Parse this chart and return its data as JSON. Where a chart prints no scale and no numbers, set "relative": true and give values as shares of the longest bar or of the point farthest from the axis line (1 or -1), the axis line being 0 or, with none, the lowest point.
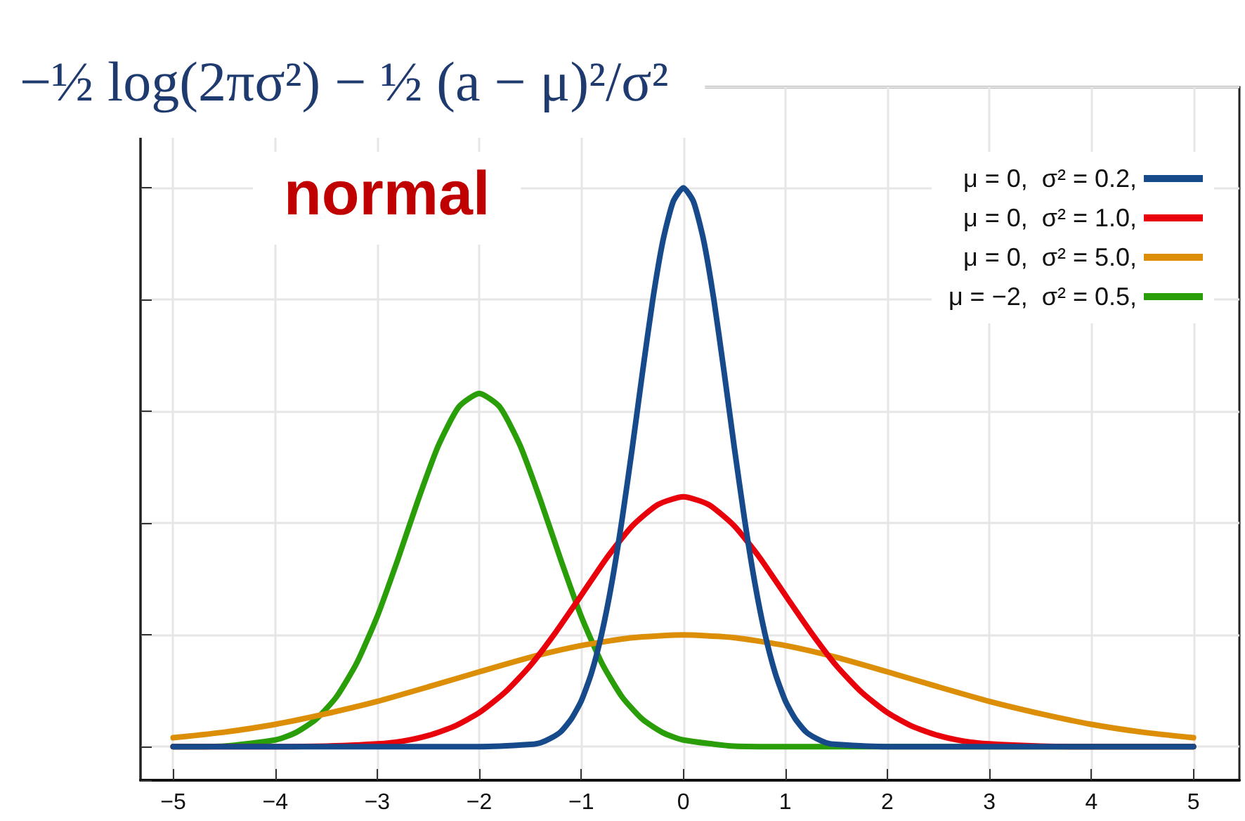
{
  "chart_data": {
    "type": "line",
    "title": "−½ log(2πσ²) − ½ (a − μ)²/σ²",
    "subtitle": "normal",
    "relative": true,
    "xlim": [
      -5.32,
      5.45
    ],
    "xticks": [
      -5,
      -4,
      -3,
      -2,
      -1,
      0,
      1,
      2,
      3,
      4,
      5
    ],
    "grid": true,
    "legend": "top right",
    "line_style": "solid",
    "series": [
      {
        "name": "μ = 0,  σ² = 0.2,",
        "color": "#174a8b",
        "x": [
          -5,
          -2,
          -1.5,
          -1.4,
          -1.3,
          -1.2,
          -1.1,
          -1,
          -0.9,
          -0.8,
          -0.7,
          -0.6,
          -0.5,
          -0.4,
          -0.3,
          -0.2,
          -0.1,
          0,
          0.1,
          0.2,
          0.3,
          0.4,
          0.5,
          0.6,
          0.7,
          0.8,
          0.9,
          1,
          1.1,
          1.2,
          1.3,
          1.4,
          1.5,
          2,
          5
        ],
        "values": [
          0,
          0,
          0.004,
          0.007,
          0.015,
          0.027,
          0.049,
          0.082,
          0.132,
          0.202,
          0.294,
          0.407,
          0.535,
          0.67,
          0.799,
          0.905,
          0.975,
          1,
          0.975,
          0.905,
          0.799,
          0.67,
          0.535,
          0.407,
          0.294,
          0.202,
          0.132,
          0.082,
          0.049,
          0.027,
          0.015,
          0.007,
          0.004,
          0,
          0
        ]
      },
      {
        "name": "μ = 0,  σ² = 1.0,",
        "color": "#e8000b",
        "x": [
          -5,
          -4,
          -3.5,
          -3,
          -2.75,
          -2.5,
          -2.25,
          -2,
          -1.75,
          -1.5,
          -1.25,
          -1,
          -0.75,
          -0.5,
          -0.25,
          0,
          0.25,
          0.5,
          0.75,
          1,
          1.25,
          1.5,
          1.75,
          2,
          2.25,
          2.5,
          2.75,
          3,
          3.5,
          4,
          5
        ],
        "values": [
          0,
          0,
          0.001,
          0.005,
          0.01,
          0.02,
          0.036,
          0.061,
          0.097,
          0.145,
          0.205,
          0.271,
          0.338,
          0.395,
          0.433,
          0.447,
          0.433,
          0.395,
          0.338,
          0.271,
          0.205,
          0.145,
          0.097,
          0.061,
          0.036,
          0.02,
          0.01,
          0.005,
          0.001,
          0,
          0
        ]
      },
      {
        "name": "μ = 0,  σ² = 5.0,",
        "color": "#dc8f06",
        "x": [
          -5,
          -4.5,
          -4,
          -3.5,
          -3,
          -2.5,
          -2,
          -1.5,
          -1,
          -0.5,
          0,
          0.5,
          1,
          1.5,
          2,
          2.5,
          3,
          3.5,
          4,
          4.5,
          5
        ],
        "values": [
          0.016,
          0.026,
          0.04,
          0.059,
          0.081,
          0.107,
          0.134,
          0.16,
          0.181,
          0.195,
          0.2,
          0.195,
          0.181,
          0.16,
          0.134,
          0.107,
          0.081,
          0.059,
          0.04,
          0.026,
          0.016
        ]
      },
      {
        "name": "μ = −2,  σ² = 0.5,",
        "color": "#2a9e09",
        "x": [
          -5,
          -4.5,
          -4,
          -3.8,
          -3.6,
          -3.4,
          -3.2,
          -3,
          -2.8,
          -2.6,
          -2.4,
          -2.2,
          -2,
          -1.8,
          -1.6,
          -1.4,
          -1.2,
          -1,
          -0.8,
          -0.6,
          -0.4,
          -0.2,
          0,
          0.5,
          1,
          5
        ],
        "values": [
          0,
          0.001,
          0.012,
          0.025,
          0.049,
          0.089,
          0.15,
          0.233,
          0.334,
          0.441,
          0.539,
          0.608,
          0.632,
          0.608,
          0.539,
          0.441,
          0.334,
          0.233,
          0.15,
          0.089,
          0.049,
          0.025,
          0.012,
          0.001,
          0,
          0
        ]
      }
    ]
  }
}
